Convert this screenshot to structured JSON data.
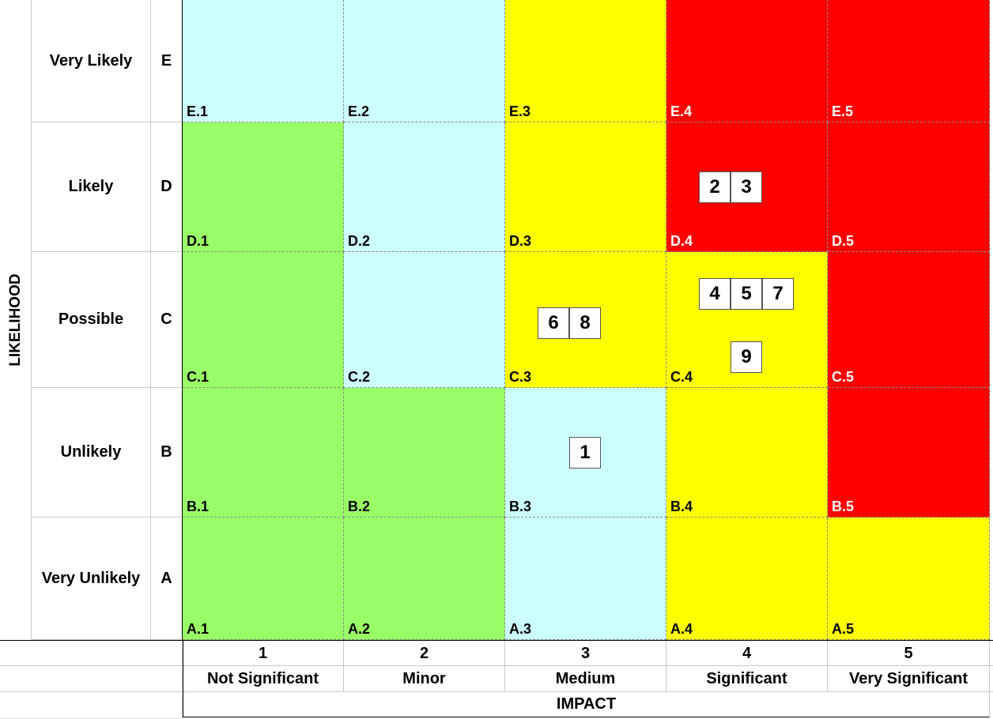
{
  "likelihood_axis": {
    "title": "LIKELIHOOD"
  },
  "impact_axis": {
    "title": "IMPACT"
  },
  "rows": [
    {
      "code": "E",
      "label": "Very Likely"
    },
    {
      "code": "D",
      "label": "Likely"
    },
    {
      "code": "C",
      "label": "Possible"
    },
    {
      "code": "B",
      "label": "Unlikely"
    },
    {
      "code": "A",
      "label": "Very Unlikely"
    }
  ],
  "columns": [
    {
      "number": "1",
      "label": "Not Significant"
    },
    {
      "number": "2",
      "label": "Minor"
    },
    {
      "number": "3",
      "label": "Medium"
    },
    {
      "number": "4",
      "label": "Significant"
    },
    {
      "number": "5",
      "label": "Very Significant"
    }
  ],
  "colors": {
    "green": "#99ff66",
    "blue": "#ccffff",
    "yellow": "#ffff00",
    "red": "#ff0000"
  },
  "cells": [
    [
      "blue",
      "blue",
      "yellow",
      "red",
      "red"
    ],
    [
      "green",
      "blue",
      "yellow",
      "red",
      "red"
    ],
    [
      "green",
      "blue",
      "yellow",
      "yellow",
      "red"
    ],
    [
      "green",
      "green",
      "blue",
      "yellow",
      "red"
    ],
    [
      "green",
      "green",
      "blue",
      "yellow",
      "yellow"
    ]
  ],
  "cell_codes": [
    [
      "E.1",
      "E.2",
      "E.3",
      "E.4",
      "E.5"
    ],
    [
      "D.1",
      "D.2",
      "D.3",
      "D.4",
      "D.5"
    ],
    [
      "C.1",
      "C.2",
      "C.3",
      "C.4",
      "C.5"
    ],
    [
      "B.1",
      "B.2",
      "B.3",
      "B.4",
      "B.5"
    ],
    [
      "A.1",
      "A.2",
      "A.3",
      "A.4",
      "A.5"
    ]
  ],
  "risks": [
    {
      "id": "1",
      "cell": "B.3"
    },
    {
      "id": "2",
      "cell": "D.4"
    },
    {
      "id": "3",
      "cell": "D.4"
    },
    {
      "id": "4",
      "cell": "C.4"
    },
    {
      "id": "5",
      "cell": "C.4"
    },
    {
      "id": "6",
      "cell": "C.3"
    },
    {
      "id": "7",
      "cell": "C.4"
    },
    {
      "id": "8",
      "cell": "C.3"
    },
    {
      "id": "9",
      "cell": "C.4"
    }
  ]
}
